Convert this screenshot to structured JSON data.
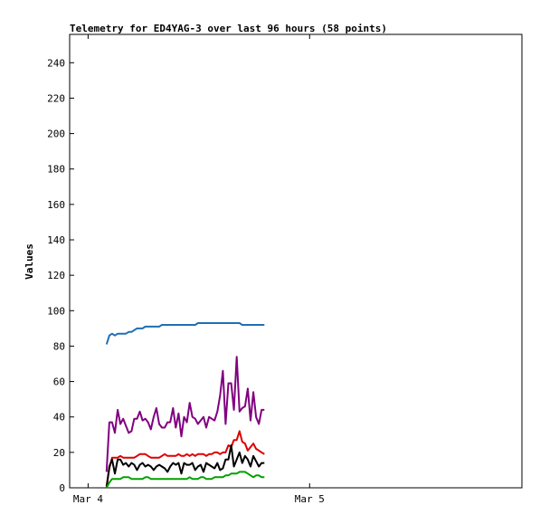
{
  "chart_data": {
    "type": "line",
    "title": "Telemetry for ED4YAG-3 over last 96 hours (58 points)",
    "ylabel": "Values",
    "xlabel": "",
    "ylim": [
      0,
      256
    ],
    "yticks": [
      0,
      20,
      40,
      60,
      80,
      100,
      120,
      140,
      160,
      180,
      200,
      220,
      240
    ],
    "xlim": [
      "2025-03-03 22:00",
      "2025-03-05 23:00"
    ],
    "xticks": [
      {
        "label": "Mar 4",
        "x": "2025-03-04 00:00"
      },
      {
        "label": "Mar 5",
        "x": "2025-03-05 00:00"
      }
    ],
    "grid": false,
    "legend": "none",
    "x": [
      "2025-03-04 02:00",
      "2025-03-04 02:18",
      "2025-03-04 02:36",
      "2025-03-04 02:54",
      "2025-03-04 03:12",
      "2025-03-04 03:30",
      "2025-03-04 03:48",
      "2025-03-04 04:06",
      "2025-03-04 04:24",
      "2025-03-04 04:42",
      "2025-03-04 05:00",
      "2025-03-04 05:18",
      "2025-03-04 05:36",
      "2025-03-04 05:54",
      "2025-03-04 06:12",
      "2025-03-04 06:30",
      "2025-03-04 06:48",
      "2025-03-04 07:06",
      "2025-03-04 07:24",
      "2025-03-04 07:42",
      "2025-03-04 08:00",
      "2025-03-04 08:18",
      "2025-03-04 08:36",
      "2025-03-04 08:54",
      "2025-03-04 09:12",
      "2025-03-04 09:30",
      "2025-03-04 09:48",
      "2025-03-04 10:06",
      "2025-03-04 10:24",
      "2025-03-04 10:42",
      "2025-03-04 11:00",
      "2025-03-04 11:18",
      "2025-03-04 11:36",
      "2025-03-04 11:54",
      "2025-03-04 12:12",
      "2025-03-04 12:30",
      "2025-03-04 12:48",
      "2025-03-04 13:06",
      "2025-03-04 13:24",
      "2025-03-04 13:42",
      "2025-03-04 14:00",
      "2025-03-04 14:18",
      "2025-03-04 14:36",
      "2025-03-04 14:54",
      "2025-03-04 15:12",
      "2025-03-04 15:30",
      "2025-03-04 15:48",
      "2025-03-04 16:06",
      "2025-03-04 16:24",
      "2025-03-04 16:42",
      "2025-03-04 17:00",
      "2025-03-04 17:18",
      "2025-03-04 17:36",
      "2025-03-04 17:54",
      "2025-03-04 18:12",
      "2025-03-04 18:30",
      "2025-03-04 18:48",
      "2025-03-04 19:06"
    ],
    "series": [
      {
        "color": "#1f6fb5",
        "values": [
          81,
          86,
          87,
          86,
          87,
          87,
          87,
          87,
          88,
          88,
          89,
          90,
          90,
          90,
          91,
          91,
          91,
          91,
          91,
          91,
          92,
          92,
          92,
          92,
          92,
          92,
          92,
          92,
          92,
          92,
          92,
          92,
          92,
          93,
          93,
          93,
          93,
          93,
          93,
          93,
          93,
          93,
          93,
          93,
          93,
          93,
          93,
          93,
          93,
          92,
          92,
          92,
          92,
          92,
          92,
          92,
          92,
          92
        ]
      },
      {
        "color": "#800080",
        "values": [
          9,
          37,
          37,
          31,
          44,
          36,
          39,
          35,
          31,
          32,
          39,
          39,
          43,
          38,
          39,
          37,
          33,
          40,
          45,
          36,
          34,
          34,
          37,
          37,
          45,
          34,
          42,
          29,
          40,
          37,
          48,
          40,
          39,
          36,
          38,
          40,
          34,
          40,
          39,
          38,
          43,
          52,
          66,
          36,
          59,
          59,
          44,
          74,
          43,
          45,
          46,
          56,
          38,
          54,
          40,
          36,
          44,
          44
        ]
      },
      {
        "color": "#dd0000",
        "values": [
          1,
          11,
          17,
          17,
          17,
          18,
          17,
          17,
          17,
          17,
          17,
          18,
          19,
          19,
          19,
          18,
          17,
          17,
          17,
          17,
          18,
          19,
          18,
          18,
          18,
          18,
          19,
          18,
          18,
          19,
          18,
          19,
          18,
          19,
          19,
          19,
          18,
          19,
          19,
          20,
          20,
          19,
          20,
          20,
          24,
          23,
          27,
          27,
          32,
          26,
          25,
          21,
          23,
          25,
          22,
          21,
          20,
          19
        ]
      },
      {
        "color": "#000000",
        "values": [
          0,
          12,
          16,
          8,
          16,
          16,
          13,
          14,
          12,
          14,
          13,
          10,
          13,
          14,
          12,
          13,
          12,
          10,
          12,
          13,
          12,
          11,
          9,
          12,
          14,
          13,
          14,
          8,
          14,
          13,
          13,
          14,
          10,
          12,
          13,
          9,
          14,
          13,
          12,
          11,
          14,
          10,
          11,
          16,
          16,
          24,
          12,
          16,
          20,
          14,
          18,
          16,
          12,
          18,
          15,
          12,
          14,
          14
        ]
      },
      {
        "color": "#00a000",
        "values": [
          0,
          3,
          5,
          5,
          5,
          5,
          6,
          6,
          6,
          5,
          5,
          5,
          5,
          5,
          6,
          6,
          5,
          5,
          5,
          5,
          5,
          5,
          5,
          5,
          5,
          5,
          5,
          5,
          5,
          5,
          6,
          5,
          5,
          5,
          6,
          6,
          5,
          5,
          5,
          6,
          6,
          6,
          6,
          7,
          7,
          8,
          8,
          8,
          9,
          9,
          9,
          8,
          7,
          6,
          7,
          7,
          6,
          6
        ]
      }
    ]
  }
}
